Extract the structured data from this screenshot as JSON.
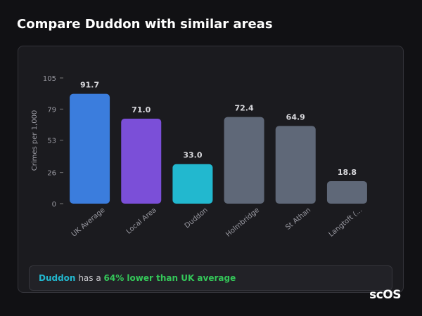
{
  "header": {
    "title": "Compare Duddon with similar areas"
  },
  "chart_data": {
    "type": "bar",
    "y_label": "Crimes per 1,000",
    "categories": [
      "UK Average",
      "Local Area",
      "Duddon",
      "Holmbridge",
      "St Athan",
      "Langtoft (..."
    ],
    "values": [
      91.7,
      71.0,
      33.0,
      72.4,
      64.9,
      18.8
    ],
    "value_labels": [
      "91.7",
      "71.0",
      "33.0",
      "72.4",
      "64.9",
      "18.8"
    ],
    "colors": [
      "#3b7ddd",
      "#7b4fd8",
      "#22b8cf",
      "#5f6878",
      "#5f6878",
      "#5f6878"
    ],
    "ylim": [
      0,
      105
    ],
    "yticks": [
      0,
      26,
      53,
      79,
      105
    ],
    "grid": false
  },
  "summary": {
    "area": "Duddon",
    "text": "has a",
    "highlight": "64% lower than UK average"
  },
  "logo": "scOS"
}
